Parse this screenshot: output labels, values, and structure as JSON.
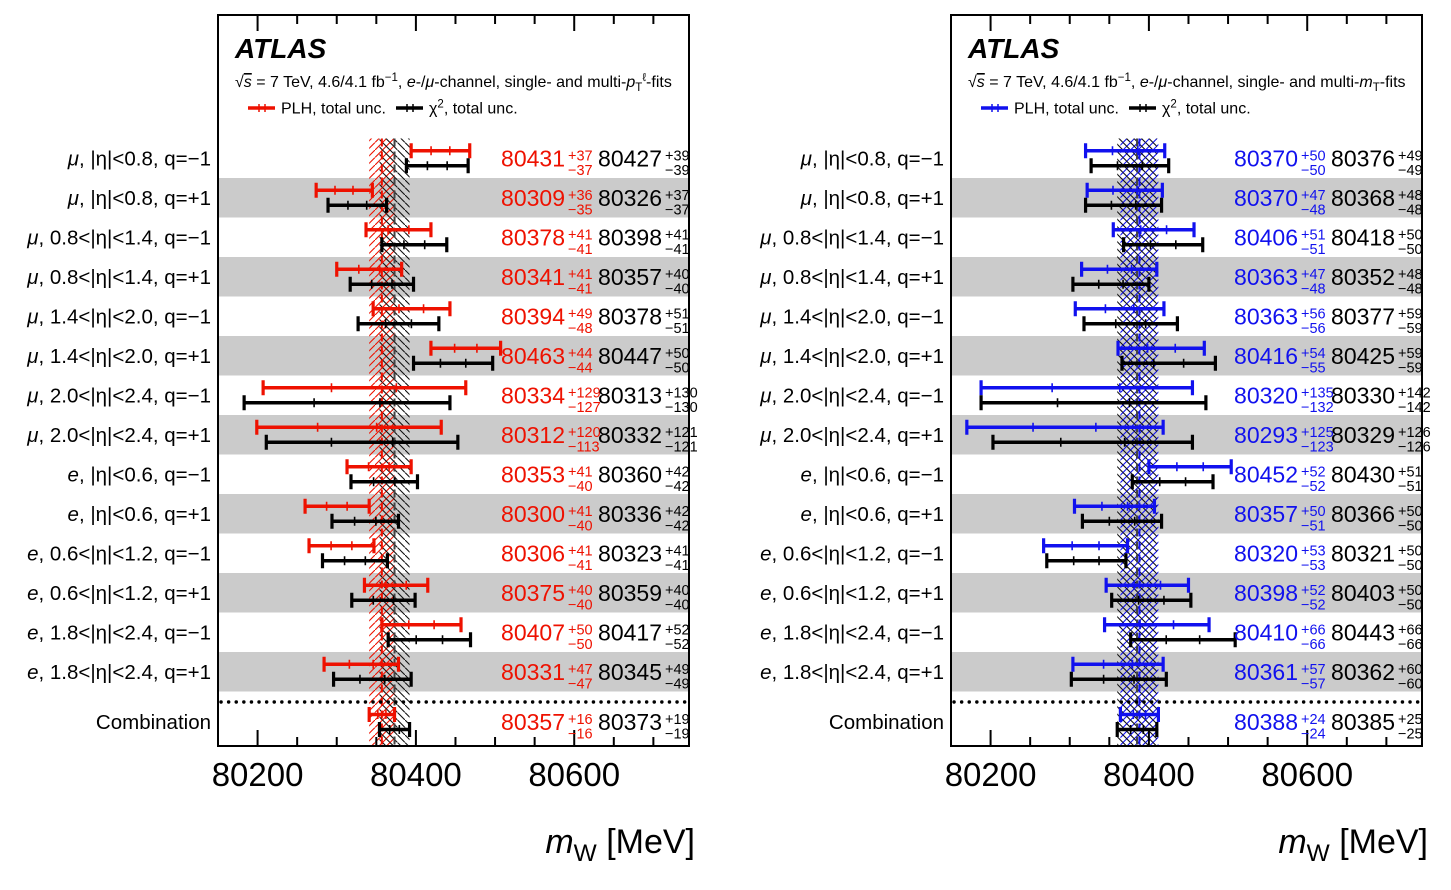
{
  "figure": {
    "background": "#ffffff",
    "axis_title_parts": [
      {
        "t": "m",
        "style": "italic"
      },
      {
        "t": "W",
        "style": "sub"
      },
      {
        "t": " [MeV]",
        "style": "normal"
      }
    ],
    "axis_title_plain": "mW [MeV]"
  },
  "chart_data": [
    {
      "id": "pt-fits",
      "type": "scatter",
      "subtype": "horizontal-errorbar",
      "title": "ATLAS",
      "subtitle_plain": "√s = 7 TeV, 4.6/4.1 fb−1, e-/μ-channel, single- and multi-pTℓ-fits",
      "subtitle_parts": [
        {
          "t": "√",
          "style": "normal"
        },
        {
          "t": "s",
          "style": "italic-over"
        },
        {
          "t": " = 7 TeV, 4.6/4.1 fb",
          "style": "normal"
        },
        {
          "t": "−1",
          "style": "sup"
        },
        {
          "t": ", ",
          "style": "normal"
        },
        {
          "t": "e",
          "style": "italic"
        },
        {
          "t": "-/",
          "style": "normal"
        },
        {
          "t": "μ",
          "style": "italic"
        },
        {
          "t": "-channel, single- and multi-",
          "style": "normal"
        },
        {
          "t": "p",
          "style": "italic"
        },
        {
          "t": "T",
          "style": "sub"
        },
        {
          "t": "ℓ",
          "style": "sup"
        },
        {
          "t": "-fits",
          "style": "normal"
        }
      ],
      "legend": [
        {
          "parts": [
            {
              "t": "PLH, total unc.",
              "style": "normal"
            }
          ],
          "color": "accent"
        },
        {
          "parts": [
            {
              "t": "χ",
              "style": "normal"
            },
            {
              "t": "2",
              "style": "sup"
            },
            {
              "t": ", total unc.",
              "style": "normal"
            }
          ],
          "color": "black"
        }
      ],
      "accent": "#ee1100",
      "xlabel": "mW [MeV]",
      "xticks": [
        80200,
        80400,
        80600
      ],
      "xlim": [
        80150,
        80745
      ],
      "minor_step": 50,
      "grid": false,
      "legend_position": "top",
      "rows": [
        {
          "label": "μ, |η|<0.8, q=−1",
          "plh": {
            "val": 80431,
            "up": 37,
            "dn": 37
          },
          "chi2": {
            "val": 80427,
            "up": 39,
            "dn": 39
          }
        },
        {
          "label": "μ, |η|<0.8, q=+1",
          "plh": {
            "val": 80309,
            "up": 36,
            "dn": 35
          },
          "chi2": {
            "val": 80326,
            "up": 37,
            "dn": 37
          }
        },
        {
          "label": "μ, 0.8<|η|<1.4, q=−1",
          "plh": {
            "val": 80378,
            "up": 41,
            "dn": 41
          },
          "chi2": {
            "val": 80398,
            "up": 41,
            "dn": 41
          }
        },
        {
          "label": "μ, 0.8<|η|<1.4, q=+1",
          "plh": {
            "val": 80341,
            "up": 41,
            "dn": 41
          },
          "chi2": {
            "val": 80357,
            "up": 40,
            "dn": 40
          }
        },
        {
          "label": "μ, 1.4<|η|<2.0, q=−1",
          "plh": {
            "val": 80394,
            "up": 49,
            "dn": 48
          },
          "chi2": {
            "val": 80378,
            "up": 51,
            "dn": 51
          }
        },
        {
          "label": "μ, 1.4<|η|<2.0, q=+1",
          "plh": {
            "val": 80463,
            "up": 44,
            "dn": 44
          },
          "chi2": {
            "val": 80447,
            "up": 50,
            "dn": 50
          }
        },
        {
          "label": "μ, 2.0<|η|<2.4, q=−1",
          "plh": {
            "val": 80334,
            "up": 129,
            "dn": 127
          },
          "chi2": {
            "val": 80313,
            "up": 130,
            "dn": 130
          }
        },
        {
          "label": "μ, 2.0<|η|<2.4, q=+1",
          "plh": {
            "val": 80312,
            "up": 120,
            "dn": 113
          },
          "chi2": {
            "val": 80332,
            "up": 121,
            "dn": 121
          }
        },
        {
          "label": "e, |η|<0.6, q=−1",
          "plh": {
            "val": 80353,
            "up": 41,
            "dn": 40
          },
          "chi2": {
            "val": 80360,
            "up": 42,
            "dn": 42
          }
        },
        {
          "label": "e, |η|<0.6, q=+1",
          "plh": {
            "val": 80300,
            "up": 41,
            "dn": 40
          },
          "chi2": {
            "val": 80336,
            "up": 42,
            "dn": 42
          }
        },
        {
          "label": "e, 0.6<|η|<1.2, q=−1",
          "plh": {
            "val": 80306,
            "up": 41,
            "dn": 41
          },
          "chi2": {
            "val": 80323,
            "up": 41,
            "dn": 41
          }
        },
        {
          "label": "e, 0.6<|η|<1.2, q=+1",
          "plh": {
            "val": 80375,
            "up": 40,
            "dn": 40
          },
          "chi2": {
            "val": 80359,
            "up": 40,
            "dn": 40
          }
        },
        {
          "label": "e, 1.8<|η|<2.4, q=−1",
          "plh": {
            "val": 80407,
            "up": 50,
            "dn": 50
          },
          "chi2": {
            "val": 80417,
            "up": 52,
            "dn": 52
          }
        },
        {
          "label": "e, 1.8<|η|<2.4, q=+1",
          "plh": {
            "val": 80331,
            "up": 47,
            "dn": 47
          },
          "chi2": {
            "val": 80345,
            "up": 49,
            "dn": 49
          }
        }
      ],
      "combination": {
        "label": "Combination",
        "plh": {
          "val": 80357,
          "up": 16,
          "dn": 16
        },
        "chi2": {
          "val": 80373,
          "up": 19,
          "dn": 19
        }
      }
    },
    {
      "id": "mt-fits",
      "type": "scatter",
      "subtype": "horizontal-errorbar",
      "title": "ATLAS",
      "subtitle_plain": "√s = 7 TeV, 4.6/4.1 fb−1, e-/μ-channel, single- and multi-mT-fits",
      "subtitle_parts": [
        {
          "t": "√",
          "style": "normal"
        },
        {
          "t": "s",
          "style": "italic-over"
        },
        {
          "t": " = 7 TeV, 4.6/4.1 fb",
          "style": "normal"
        },
        {
          "t": "−1",
          "style": "sup"
        },
        {
          "t": ", ",
          "style": "normal"
        },
        {
          "t": "e",
          "style": "italic"
        },
        {
          "t": "-/",
          "style": "normal"
        },
        {
          "t": "μ",
          "style": "italic"
        },
        {
          "t": "-channel, single- and multi-",
          "style": "normal"
        },
        {
          "t": "m",
          "style": "italic"
        },
        {
          "t": "T",
          "style": "sub"
        },
        {
          "t": "-fits",
          "style": "normal"
        }
      ],
      "legend": [
        {
          "parts": [
            {
              "t": "PLH, total unc.",
              "style": "normal"
            }
          ],
          "color": "accent"
        },
        {
          "parts": [
            {
              "t": "χ",
              "style": "normal"
            },
            {
              "t": "2",
              "style": "sup"
            },
            {
              "t": ", total unc.",
              "style": "normal"
            }
          ],
          "color": "black"
        }
      ],
      "accent": "#1111ee",
      "xlabel": "mW [MeV]",
      "xticks": [
        80200,
        80400,
        80600
      ],
      "xlim": [
        80150,
        80745
      ],
      "minor_step": 50,
      "grid": false,
      "legend_position": "top",
      "rows": [
        {
          "label": "μ, |η|<0.8, q=−1",
          "plh": {
            "val": 80370,
            "up": 50,
            "dn": 50
          },
          "chi2": {
            "val": 80376,
            "up": 49,
            "dn": 49
          }
        },
        {
          "label": "μ, |η|<0.8, q=+1",
          "plh": {
            "val": 80370,
            "up": 47,
            "dn": 48
          },
          "chi2": {
            "val": 80368,
            "up": 48,
            "dn": 48
          }
        },
        {
          "label": "μ, 0.8<|η|<1.4, q=−1",
          "plh": {
            "val": 80406,
            "up": 51,
            "dn": 51
          },
          "chi2": {
            "val": 80418,
            "up": 50,
            "dn": 50
          }
        },
        {
          "label": "μ, 0.8<|η|<1.4, q=+1",
          "plh": {
            "val": 80363,
            "up": 47,
            "dn": 48
          },
          "chi2": {
            "val": 80352,
            "up": 48,
            "dn": 48
          }
        },
        {
          "label": "μ, 1.4<|η|<2.0, q=−1",
          "plh": {
            "val": 80363,
            "up": 56,
            "dn": 56
          },
          "chi2": {
            "val": 80377,
            "up": 59,
            "dn": 59
          }
        },
        {
          "label": "μ, 1.4<|η|<2.0, q=+1",
          "plh": {
            "val": 80416,
            "up": 54,
            "dn": 55
          },
          "chi2": {
            "val": 80425,
            "up": 59,
            "dn": 59
          }
        },
        {
          "label": "μ, 2.0<|η|<2.4, q=−1",
          "plh": {
            "val": 80320,
            "up": 135,
            "dn": 132
          },
          "chi2": {
            "val": 80330,
            "up": 142,
            "dn": 142
          }
        },
        {
          "label": "μ, 2.0<|η|<2.4, q=+1",
          "plh": {
            "val": 80293,
            "up": 125,
            "dn": 123
          },
          "chi2": {
            "val": 80329,
            "up": 126,
            "dn": 126
          }
        },
        {
          "label": "e, |η|<0.6, q=−1",
          "plh": {
            "val": 80452,
            "up": 52,
            "dn": 52
          },
          "chi2": {
            "val": 80430,
            "up": 51,
            "dn": 51
          }
        },
        {
          "label": "e, |η|<0.6, q=+1",
          "plh": {
            "val": 80357,
            "up": 50,
            "dn": 51
          },
          "chi2": {
            "val": 80366,
            "up": 50,
            "dn": 50
          }
        },
        {
          "label": "e, 0.6<|η|<1.2, q=−1",
          "plh": {
            "val": 80320,
            "up": 53,
            "dn": 53
          },
          "chi2": {
            "val": 80321,
            "up": 50,
            "dn": 50
          }
        },
        {
          "label": "e, 0.6<|η|<1.2, q=+1",
          "plh": {
            "val": 80398,
            "up": 52,
            "dn": 52
          },
          "chi2": {
            "val": 80403,
            "up": 50,
            "dn": 50
          }
        },
        {
          "label": "e, 1.8<|η|<2.4, q=−1",
          "plh": {
            "val": 80410,
            "up": 66,
            "dn": 66
          },
          "chi2": {
            "val": 80443,
            "up": 66,
            "dn": 66
          }
        },
        {
          "label": "e, 1.8<|η|<2.4, q=+1",
          "plh": {
            "val": 80361,
            "up": 57,
            "dn": 57
          },
          "chi2": {
            "val": 80362,
            "up": 60,
            "dn": 60
          }
        }
      ],
      "combination": {
        "label": "Combination",
        "plh": {
          "val": 80388,
          "up": 24,
          "dn": 24
        },
        "chi2": {
          "val": 80385,
          "up": 25,
          "dn": 25
        }
      }
    }
  ]
}
